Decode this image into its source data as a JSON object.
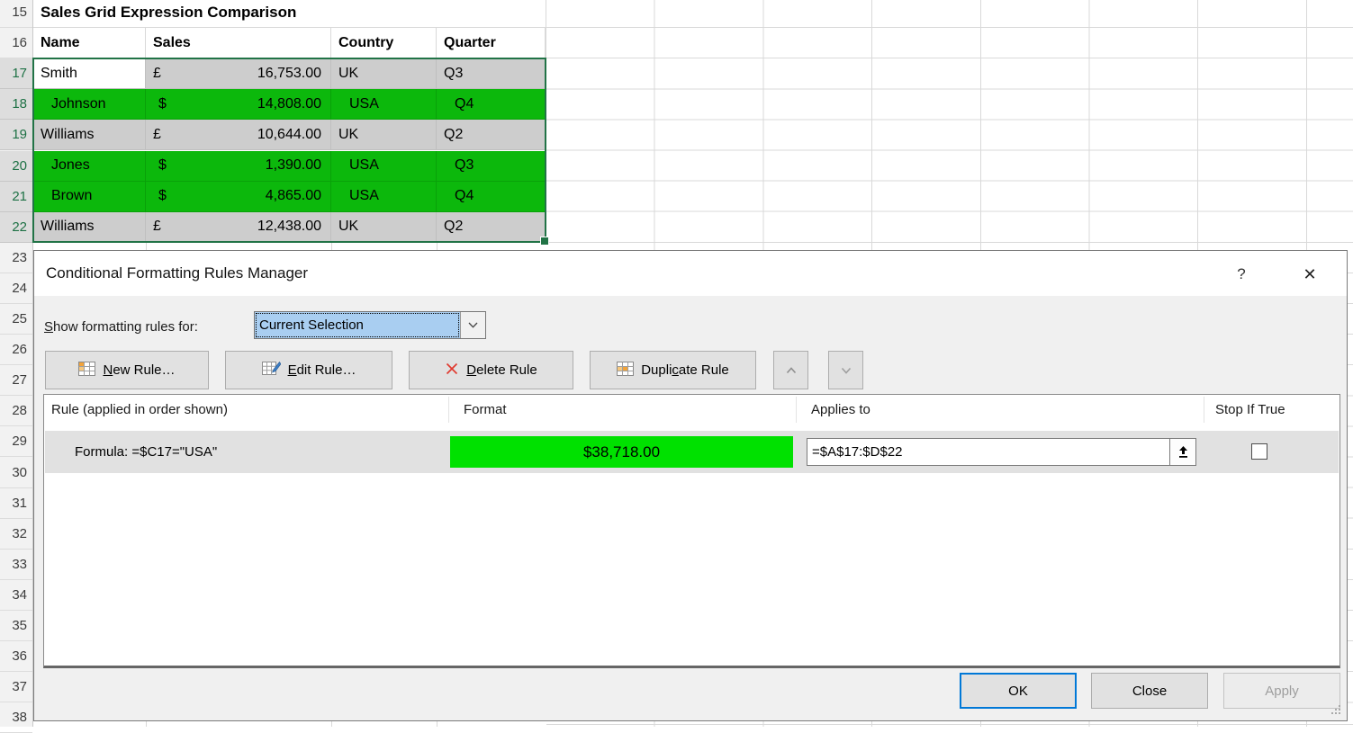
{
  "colors": {
    "green-fill": "#0cb80c",
    "green-preview": "#00e100",
    "selection-border": "#217346",
    "selected-cell-gray": "#cdcdcd",
    "combo-blue": "#a9cef1",
    "ok-border-blue": "#0078d7",
    "delete-x-red": "#e03a2f",
    "icon-orange": "#f2a33a"
  },
  "spreadsheet": {
    "row_numbers": [
      15,
      16,
      17,
      18,
      19,
      20,
      21,
      22,
      23,
      24,
      25,
      26,
      27,
      28,
      29,
      30,
      31,
      32,
      33,
      34,
      35,
      36,
      37,
      38
    ],
    "selected_row_numbers": [
      17,
      18,
      19,
      20,
      21,
      22
    ],
    "title": "Sales Grid Expression Comparison",
    "columns": [
      "Name",
      "Sales",
      "Country",
      "Quarter"
    ],
    "rows": [
      {
        "row": 17,
        "name": "Smith",
        "currency": "£",
        "amount": "16,753.00",
        "country": "UK",
        "quarter": "Q3",
        "highlight": false,
        "active": true
      },
      {
        "row": 18,
        "name": "Johnson",
        "currency": "$",
        "amount": "14,808.00",
        "country": "USA",
        "quarter": "Q4",
        "highlight": true
      },
      {
        "row": 19,
        "name": "Williams",
        "currency": "£",
        "amount": "10,644.00",
        "country": "UK",
        "quarter": "Q2",
        "highlight": false
      },
      {
        "row": 20,
        "name": "Jones",
        "currency": "$",
        "amount": "1,390.00",
        "country": "USA",
        "quarter": "Q3",
        "highlight": true
      },
      {
        "row": 21,
        "name": "Brown",
        "currency": "$",
        "amount": "4,865.00",
        "country": "USA",
        "quarter": "Q4",
        "highlight": true
      },
      {
        "row": 22,
        "name": "Williams",
        "currency": "£",
        "amount": "12,438.00",
        "country": "UK",
        "quarter": "Q2",
        "highlight": false
      }
    ]
  },
  "dialog": {
    "title": "Conditional Formatting Rules Manager",
    "help_glyph": "?",
    "close_glyph": "✕",
    "show_rules_label": {
      "u": "S",
      "post": "how formatting rules for:"
    },
    "show_rules_value": "Current Selection",
    "toolbar": {
      "new_rule": {
        "u": "N",
        "post": "ew Rule…"
      },
      "edit_rule": {
        "u": "E",
        "post": "dit Rule…"
      },
      "delete_rule": {
        "u": "D",
        "post": "elete Rule"
      },
      "duplicate_rule": {
        "pre": "Dupli",
        "u": "c",
        "post": "ate Rule"
      }
    },
    "list": {
      "header_rule": "Rule (applied in order shown)",
      "header_format": "Format",
      "header_applies": "Applies to",
      "header_stop": "Stop If True",
      "rule": {
        "text": "Formula: =$C17=\"USA\"",
        "format_preview": "$38,718.00",
        "applies_to": "=$A$17:$D$22",
        "stop_if_true": false
      }
    },
    "buttons": {
      "ok": "OK",
      "close": "Close",
      "apply": "Apply"
    }
  }
}
